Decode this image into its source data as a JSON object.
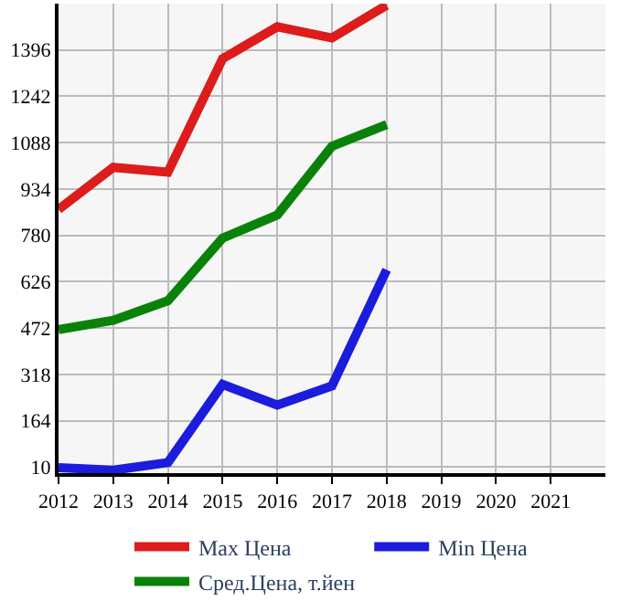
{
  "chart_data": {
    "type": "line",
    "x": [
      2012,
      2013,
      2014,
      2015,
      2016,
      2017,
      2018
    ],
    "series": [
      {
        "name": "Max Цена",
        "color": "#dd1c1c",
        "values": [
          866,
          1006,
          990,
          1367,
          1473,
          1436,
          1545
        ]
      },
      {
        "name": "Min Цена",
        "color": "#1c1cdd",
        "values": [
          8,
          0,
          25,
          285,
          216,
          280,
          666
        ]
      },
      {
        "name": "Сред.Цена, т.йен",
        "color": "#0a820a",
        "values": [
          467,
          498,
          563,
          771,
          848,
          1076,
          1148
        ]
      }
    ],
    "xlim": [
      2012,
      2022
    ],
    "xticks": [
      2012,
      2013,
      2014,
      2015,
      2016,
      2017,
      2018,
      2019,
      2020,
      2021
    ],
    "ylim": [
      -10,
      1550
    ],
    "yticks": [
      10,
      164,
      318,
      472,
      626,
      780,
      934,
      1088,
      1242,
      1396
    ],
    "grid": true,
    "legend": "bottom",
    "marker": "none",
    "line_style": "solid"
  }
}
